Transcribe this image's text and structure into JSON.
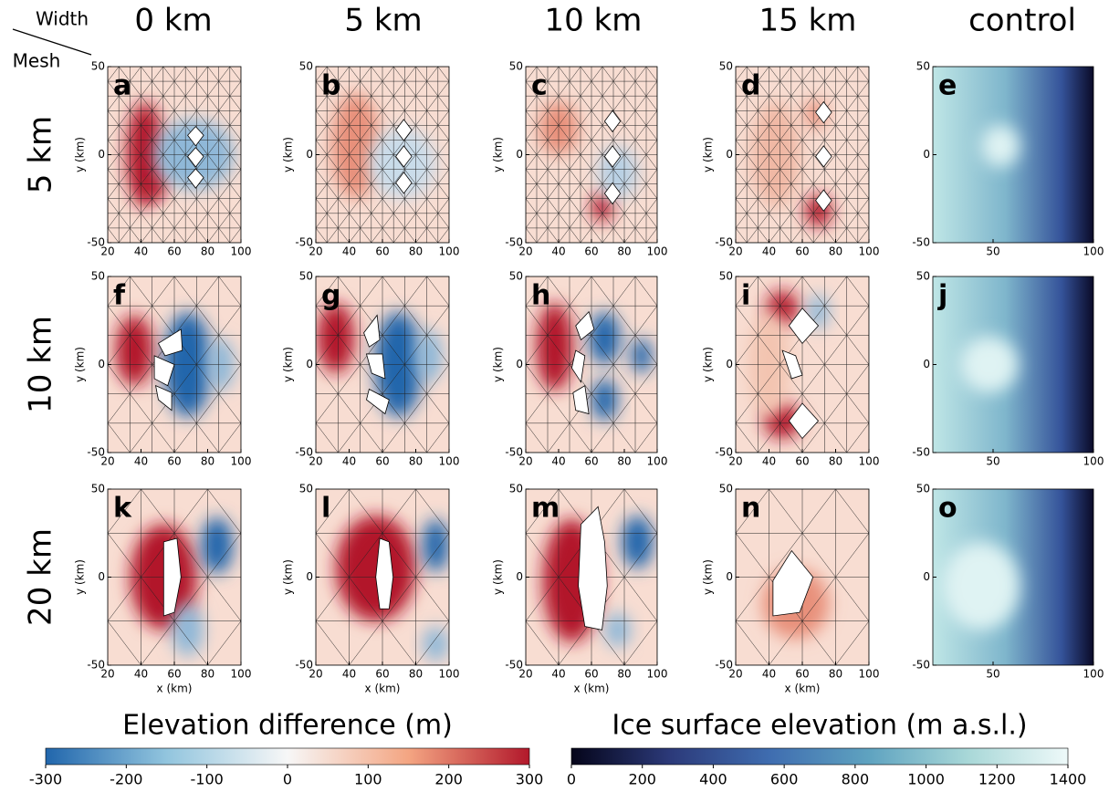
{
  "corner": {
    "width": "Width",
    "mesh": "Mesh"
  },
  "columns": [
    "0 km",
    "5 km",
    "10 km",
    "15 km",
    "control"
  ],
  "rows": [
    "5 km",
    "10 km",
    "20 km"
  ],
  "panels": [
    [
      "a",
      "b",
      "c",
      "d",
      "e"
    ],
    [
      "f",
      "g",
      "h",
      "i",
      "j"
    ],
    [
      "k",
      "l",
      "m",
      "n",
      "o"
    ]
  ],
  "axes": {
    "xlim": [
      20,
      100
    ],
    "ylim": [
      -50,
      50
    ],
    "xticks": [
      20,
      40,
      60,
      80,
      100
    ],
    "yticks": [
      -50,
      0,
      50
    ],
    "control_xticks": [
      50,
      100
    ],
    "x_label": "x (km)",
    "y_label": "y (km)"
  },
  "colorbars": [
    {
      "title": "Elevation difference (m)",
      "lim": [
        -300,
        300
      ],
      "ticks": [
        -300,
        -200,
        -100,
        0,
        100,
        200,
        300
      ],
      "colors": [
        "#2166ac",
        "#92c5de",
        "#f7f7f7",
        "#f4a582",
        "#b2182b"
      ]
    },
    {
      "title": "Ice surface elevation (m a.s.l.)",
      "lim": [
        0,
        1400
      ],
      "ticks": [
        0,
        200,
        400,
        600,
        800,
        1000,
        1200,
        1400
      ],
      "colors": [
        "#05051a",
        "#2c3a7a",
        "#3f6db0",
        "#5fa3c0",
        "#a9d8d8",
        "#eef9f9"
      ]
    }
  ]
}
